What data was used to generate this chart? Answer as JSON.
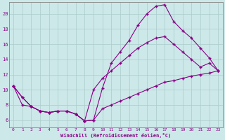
{
  "xlabel": "Windchill (Refroidissement éolien,°C)",
  "bg_color": "#cce8e8",
  "line_color": "#880088",
  "grid_color": "#aacccc",
  "axis_color": "#888888",
  "xlim": [
    -0.5,
    23.5
  ],
  "ylim": [
    5.0,
    21.5
  ],
  "xticks": [
    0,
    1,
    2,
    3,
    4,
    5,
    6,
    7,
    8,
    9,
    10,
    11,
    12,
    13,
    14,
    15,
    16,
    17,
    18,
    19,
    20,
    21,
    22,
    23
  ],
  "yticks": [
    6,
    8,
    10,
    12,
    14,
    16,
    18,
    20
  ],
  "line1_x": [
    0,
    1,
    2,
    3,
    4,
    5,
    6,
    7,
    8,
    9,
    10,
    11,
    12,
    13,
    14,
    15,
    16,
    17,
    18,
    19,
    20,
    21,
    22,
    23
  ],
  "line1_y": [
    10.5,
    9.0,
    7.8,
    7.2,
    7.0,
    7.2,
    7.2,
    6.8,
    5.9,
    6.0,
    10.2,
    13.5,
    15.0,
    16.5,
    18.5,
    20.0,
    21.0,
    21.2,
    19.0,
    17.8,
    16.8,
    15.5,
    14.2,
    12.5
  ],
  "line2_x": [
    0,
    1,
    2,
    3,
    4,
    5,
    6,
    7,
    8,
    9,
    10,
    11,
    12,
    13,
    14,
    15,
    16,
    17,
    18,
    19,
    20,
    21,
    22,
    23
  ],
  "line2_y": [
    10.5,
    9.0,
    7.8,
    7.2,
    7.0,
    7.2,
    7.2,
    6.8,
    5.9,
    10.0,
    11.5,
    12.5,
    13.5,
    14.5,
    15.5,
    16.2,
    16.8,
    17.0,
    16.0,
    15.0,
    14.0,
    13.0,
    13.5,
    12.5
  ],
  "line3_x": [
    0,
    1,
    2,
    3,
    4,
    5,
    6,
    7,
    8,
    9,
    10,
    11,
    12,
    13,
    14,
    15,
    16,
    17,
    18,
    19,
    20,
    21,
    22,
    23
  ],
  "line3_y": [
    10.5,
    8.0,
    7.8,
    7.2,
    7.0,
    7.2,
    7.2,
    6.8,
    5.9,
    6.0,
    7.5,
    8.0,
    8.5,
    9.0,
    9.5,
    10.0,
    10.5,
    11.0,
    11.2,
    11.5,
    11.8,
    12.0,
    12.2,
    12.5
  ]
}
